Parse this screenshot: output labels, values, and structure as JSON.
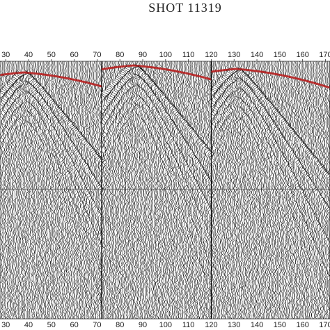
{
  "chart_data": {
    "type": "seismic",
    "title": "SHOT 11319",
    "xlim": [
      27.5,
      172
    ],
    "xticks": [
      30,
      40,
      50,
      60,
      70,
      80,
      90,
      100,
      110,
      120,
      130,
      140,
      150,
      160,
      170
    ]
  }
}
